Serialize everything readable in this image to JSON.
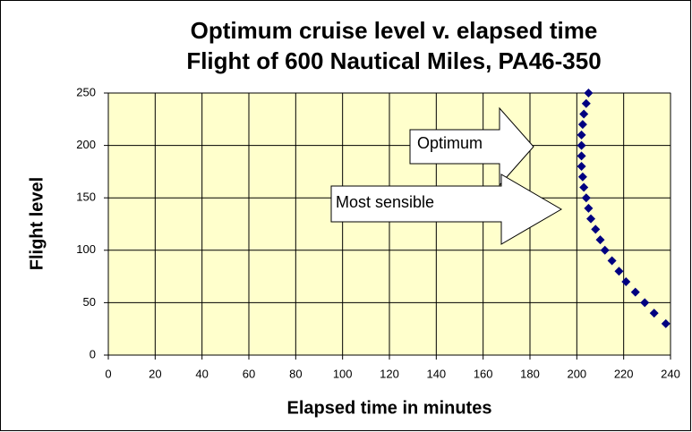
{
  "chart_data": {
    "type": "scatter",
    "title": "Optimum cruise level v. elapsed time",
    "subtitle": "Flight of 600 Nautical Miles, PA46-350",
    "x_label": "Elapsed time in minutes",
    "y_label": "Flight level",
    "series": [
      {
        "name": "Flight level",
        "color": "#000080",
        "x": [
          238,
          233,
          229,
          225,
          221,
          218,
          215,
          212,
          210,
          208,
          206,
          205,
          204,
          203,
          202.5,
          202,
          202,
          202,
          202,
          202.5,
          203,
          204,
          205
        ],
        "values": [
          30,
          40,
          50,
          60,
          70,
          80,
          90,
          100,
          110,
          120,
          130,
          140,
          150,
          160,
          170,
          180,
          190,
          200,
          210,
          220,
          230,
          240,
          250
        ]
      }
    ],
    "xlim": [
      0,
      240
    ],
    "xticks": [
      0,
      20,
      40,
      60,
      80,
      100,
      120,
      140,
      160,
      180,
      200,
      220,
      240
    ],
    "ylim": [
      0,
      250
    ],
    "yticks": [
      0,
      50,
      100,
      150,
      200,
      250
    ],
    "grid": true,
    "plot_background": "#ffffcc",
    "annotations": [
      "Optimum",
      "Most sensible"
    ]
  }
}
